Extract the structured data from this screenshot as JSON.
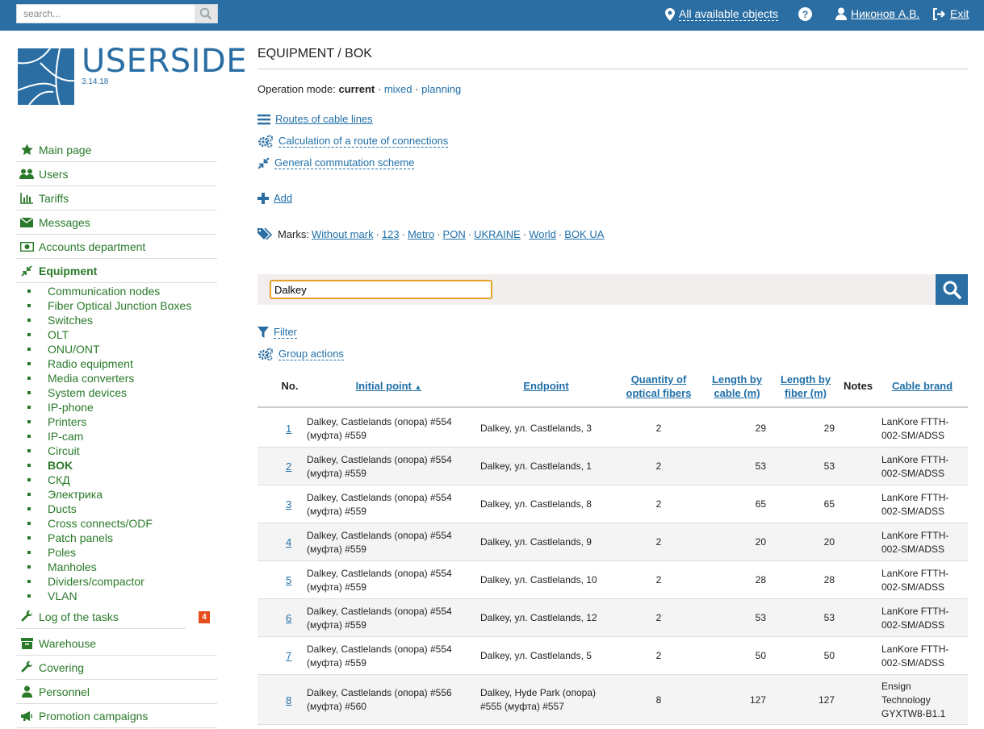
{
  "topbar": {
    "search_placeholder": "search...",
    "objects_label": "All available objects",
    "user_label": "Никонов А.В.",
    "exit_label": "Exit"
  },
  "brand": {
    "name": "USERSIDE",
    "version": "3.14.18"
  },
  "sidebar": {
    "items": [
      {
        "label": "Main page",
        "icon": "star-icon"
      },
      {
        "label": "Users",
        "icon": "users-icon"
      },
      {
        "label": "Tariffs",
        "icon": "bar-chart-icon"
      },
      {
        "label": "Messages",
        "icon": "envelope-icon"
      },
      {
        "label": "Accounts department",
        "icon": "money-icon"
      },
      {
        "label": "Equipment",
        "icon": "compress-arrows-icon"
      }
    ],
    "subitems": [
      "Communication nodes",
      "Fiber Optical Junction Boxes",
      "Switches",
      "OLT",
      "ONU/ONT",
      "Radio equipment",
      "Media converters",
      "System devices",
      "IP-phone",
      "Printers",
      "IP-cam",
      "Circuit",
      "BOK",
      "СКД",
      "Электрика",
      "Ducts",
      "Cross connects/ODF",
      "Patch panels",
      "Poles",
      "Manholes",
      "Dividers/compactor",
      "VLAN"
    ],
    "tasks_label": "Log of the tasks",
    "tasks_badge": "4",
    "bottom_items": [
      {
        "label": "Warehouse",
        "icon": "box-icon"
      },
      {
        "label": "Covering",
        "icon": "wrench-icon"
      },
      {
        "label": "Personnel",
        "icon": "person-icon"
      },
      {
        "label": "Promotion campaigns",
        "icon": "megaphone-icon"
      }
    ]
  },
  "main": {
    "title": "EQUIPMENT / BOK",
    "opmode_label": "Operation mode:",
    "opmode_current": "current",
    "opmode_mixed": "mixed",
    "opmode_planning": "planning",
    "routes_label": "Routes of cable lines",
    "calc_label": "Calculation of a route of connections",
    "scheme_label": "General commutation scheme",
    "add_label": "Add",
    "marks_label": "Marks:",
    "marks": [
      "Without mark",
      "123",
      "Metro",
      "PON",
      "UKRAINE",
      "World",
      "BOK UA"
    ],
    "search_value": "Dalkey",
    "filter_label": "Filter",
    "group_label": "Group actions"
  },
  "table": {
    "headers": {
      "no": "No.",
      "initial": "Initial point",
      "endpoint": "Endpoint",
      "fibers": "Quantity of optical fibers",
      "len_cable": "Length by cable (m)",
      "len_fiber": "Length by fiber (m)",
      "notes": "Notes",
      "brand": "Cable brand"
    },
    "rows": [
      {
        "no": "1",
        "initial": "Dalkey, Castlelands (опора) #554 (муфта) #559",
        "endpoint": "Dalkey, ул. Castlelands, 3",
        "fibers": "2",
        "len_cable": "29",
        "len_fiber": "29",
        "brand": "LanKore FTTH-002-SM/ADSS"
      },
      {
        "no": "2",
        "initial": "Dalkey, Castlelands (опора) #554 (муфта) #559",
        "endpoint": "Dalkey, ул. Castlelands, 1",
        "fibers": "2",
        "len_cable": "53",
        "len_fiber": "53",
        "brand": "LanKore FTTH-002-SM/ADSS"
      },
      {
        "no": "3",
        "initial": "Dalkey, Castlelands (опора) #554 (муфта) #559",
        "endpoint": "Dalkey, ул. Castlelands, 8",
        "fibers": "2",
        "len_cable": "65",
        "len_fiber": "65",
        "brand": "LanKore FTTH-002-SM/ADSS"
      },
      {
        "no": "4",
        "initial": "Dalkey, Castlelands (опора) #554 (муфта) #559",
        "endpoint": "Dalkey, ул. Castlelands, 9",
        "fibers": "2",
        "len_cable": "20",
        "len_fiber": "20",
        "brand": "LanKore FTTH-002-SM/ADSS"
      },
      {
        "no": "5",
        "initial": "Dalkey, Castlelands (опора) #554 (муфта) #559",
        "endpoint": "Dalkey, ул. Castlelands, 10",
        "fibers": "2",
        "len_cable": "28",
        "len_fiber": "28",
        "brand": "LanKore FTTH-002-SM/ADSS"
      },
      {
        "no": "6",
        "initial": "Dalkey, Castlelands (опора) #554 (муфта) #559",
        "endpoint": "Dalkey, ул. Castlelands, 12",
        "fibers": "2",
        "len_cable": "53",
        "len_fiber": "53",
        "brand": "LanKore FTTH-002-SM/ADSS"
      },
      {
        "no": "7",
        "initial": "Dalkey, Castlelands (опора) #554 (муфта) #559",
        "endpoint": "Dalkey, ул. Castlelands, 5",
        "fibers": "2",
        "len_cable": "50",
        "len_fiber": "50",
        "brand": "LanKore FTTH-002-SM/ADSS"
      },
      {
        "no": "8",
        "initial": "Dalkey, Castlelands (опора) #556 (муфта) #560",
        "endpoint": "Dalkey, Hyde Park (опора) #555 (муфта) #557",
        "fibers": "8",
        "len_cable": "127",
        "len_fiber": "127",
        "brand": "Ensign Technology GYXTW8-B1.1"
      }
    ]
  }
}
